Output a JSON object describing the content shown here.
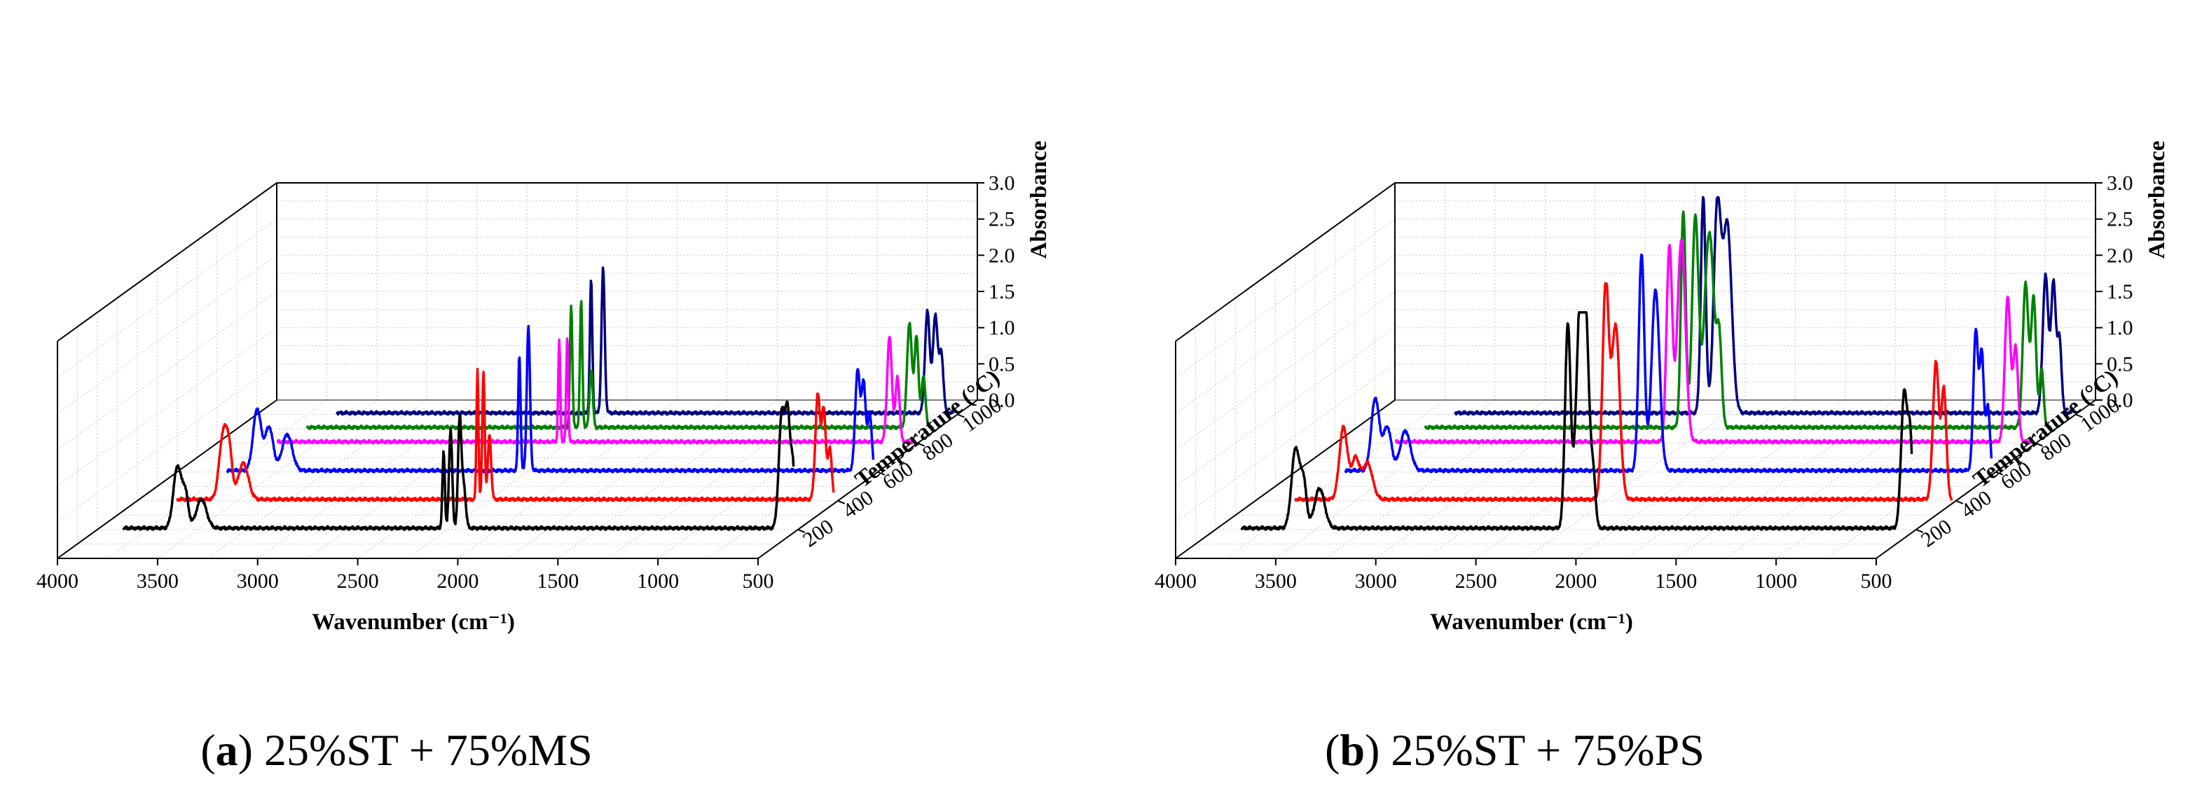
{
  "chart_data": [
    {
      "type": "line",
      "view": "3d-waterfall",
      "panel": "a",
      "caption": "25%ST + 75%MS",
      "xlabel": "Wavenumber (cm⁻¹)",
      "ylabel": "Temperature (°C)",
      "zlabel": "Absorbance",
      "xlim": [
        4000,
        500
      ],
      "x_ticks": [
        "4000",
        "3500",
        "3000",
        "2500",
        "2000",
        "1500",
        "1000",
        "500"
      ],
      "y_ticks": [
        "200",
        "400",
        "600",
        "800",
        "1000"
      ],
      "z_ticks": [
        "0.0",
        "0.5",
        "1.0",
        "1.5",
        "2.0",
        "2.5",
        "3.0"
      ],
      "zlim": [
        0,
        3
      ],
      "series": [
        {
          "name": "200",
          "color": "#000000",
          "temperature": 200,
          "x_start": 3870,
          "peaks": [
            [
              3600,
              0.85,
              20
            ],
            [
              3560,
              0.45,
              15
            ],
            [
              3480,
              0.4,
              25
            ],
            [
              2270,
              1.05,
              6
            ],
            [
              2235,
              1.35,
              8
            ],
            [
              2190,
              1.5,
              8
            ],
            [
              2170,
              0.6,
              10
            ],
            [
              580,
              1.6,
              15
            ],
            [
              550,
              1.45,
              12
            ],
            [
              525,
              0.8,
              10
            ]
          ]
        },
        {
          "name": "400",
          "color": "#ff0000",
          "temperature": 400,
          "x_start": 3800,
          "peaks": [
            [
              3570,
              0.9,
              20
            ],
            [
              3540,
              0.55,
              15
            ],
            [
              3470,
              0.5,
              25
            ],
            [
              2300,
              1.8,
              5
            ],
            [
              2270,
              1.75,
              6
            ],
            [
              2240,
              0.9,
              8
            ],
            [
              600,
              1.45,
              12
            ],
            [
              570,
              1.2,
              10
            ],
            [
              540,
              0.7,
              10
            ]
          ]
        },
        {
          "name": "600",
          "color": "#0000ff",
          "temperature": 600,
          "x_start": 3750,
          "peaks": [
            [
              3600,
              0.85,
              20
            ],
            [
              3540,
              0.6,
              20
            ],
            [
              3450,
              0.5,
              25
            ],
            [
              2290,
              1.6,
              6
            ],
            [
              2245,
              2.0,
              8
            ],
            [
              600,
              1.4,
              12
            ],
            [
              570,
              1.2,
              10
            ],
            [
              540,
              0.8,
              10
            ]
          ]
        },
        {
          "name": "800",
          "color": "#ff00ff",
          "temperature": 800,
          "x_start": 3700,
          "peaks": [
            [
              2290,
              1.4,
              5
            ],
            [
              2250,
              1.45,
              5
            ],
            [
              640,
              1.45,
              12
            ],
            [
              600,
              0.9,
              10
            ]
          ]
        },
        {
          "name": "900",
          "color": "#008000",
          "temperature": 900,
          "x_start": 3650,
          "peaks": [
            [
              2330,
              1.7,
              6
            ],
            [
              2280,
              1.75,
              6
            ],
            [
              2230,
              0.8,
              8
            ],
            [
              640,
              1.45,
              12
            ],
            [
              605,
              1.25,
              10
            ],
            [
              570,
              0.7,
              10
            ]
          ]
        },
        {
          "name": "1000",
          "color": "#000080",
          "temperature": 1000,
          "x_start": 3600,
          "peaks": [
            [
              2330,
              1.85,
              6
            ],
            [
              2270,
              2.0,
              8
            ],
            [
              650,
              1.4,
              12
            ],
            [
              610,
              1.35,
              12
            ],
            [
              580,
              0.8,
              10
            ]
          ]
        }
      ]
    },
    {
      "type": "line",
      "view": "3d-waterfall",
      "panel": "b",
      "caption": "25%ST + 75%PS",
      "xlabel": "Wavenumber (cm⁻¹)",
      "ylabel": "Temperature (°C)",
      "zlabel": "Absorbance",
      "xlim": [
        4000,
        500
      ],
      "x_ticks": [
        "4000",
        "3500",
        "3000",
        "2500",
        "2000",
        "1500",
        "1000",
        "500"
      ],
      "y_ticks": [
        "200",
        "400",
        "600",
        "800",
        "1000"
      ],
      "z_ticks": [
        "0.0",
        "0.5",
        "1.0",
        "1.5",
        "2.0",
        "2.5",
        "3.0"
      ],
      "zlim": [
        0,
        3
      ],
      "series": [
        {
          "name": "200",
          "color": "#000000",
          "temperature": 200,
          "x_start": 3870,
          "peaks": [
            [
              3600,
              1.1,
              20
            ],
            [
              3560,
              0.6,
              15
            ],
            [
              3480,
              0.55,
              25
            ],
            [
              2240,
              2.8,
              14
            ],
            [
              2180,
              2.6,
              20
            ],
            [
              2150,
              2.4,
              20
            ],
            [
              2110,
              0.5,
              10
            ],
            [
              560,
              1.85,
              15
            ],
            [
              530,
              1.2,
              12
            ]
          ]
        },
        {
          "name": "400",
          "color": "#ff0000",
          "temperature": 400,
          "x_start": 3800,
          "peaks": [
            [
              3560,
              1.0,
              20
            ],
            [
              3500,
              0.55,
              20
            ],
            [
              3440,
              0.5,
              25
            ],
            [
              2250,
              2.95,
              16
            ],
            [
              2200,
              2.4,
              20
            ],
            [
              600,
              1.9,
              15
            ],
            [
              560,
              1.5,
              12
            ]
          ]
        },
        {
          "name": "600",
          "color": "#0000ff",
          "temperature": 600,
          "x_start": 3750,
          "peaks": [
            [
              3600,
              1.0,
              20
            ],
            [
              3540,
              0.6,
              20
            ],
            [
              3450,
              0.55,
              25
            ],
            [
              2270,
              3.0,
              14
            ],
            [
              2200,
              2.5,
              20
            ],
            [
              600,
              1.95,
              12
            ],
            [
              570,
              1.6,
              10
            ],
            [
              540,
              0.9,
              10
            ]
          ]
        },
        {
          "name": "800",
          "color": "#ff00ff",
          "temperature": 800,
          "x_start": 3700,
          "peaks": [
            [
              2330,
              2.7,
              14
            ],
            [
              2270,
              2.8,
              20
            ],
            [
              640,
              2.0,
              14
            ],
            [
              600,
              1.3,
              12
            ]
          ]
        },
        {
          "name": "900",
          "color": "#008000",
          "temperature": 900,
          "x_start": 3650,
          "peaks": [
            [
              2360,
              3.0,
              12
            ],
            [
              2300,
              2.9,
              16
            ],
            [
              2230,
              2.7,
              24
            ],
            [
              2180,
              1.1,
              12
            ],
            [
              650,
              2.0,
              14
            ],
            [
              610,
              1.8,
              12
            ],
            [
              570,
              0.8,
              10
            ]
          ]
        },
        {
          "name": "1000",
          "color": "#000080",
          "temperature": 1000,
          "x_start": 3600,
          "peaks": [
            [
              2360,
              3.0,
              12
            ],
            [
              2290,
              2.8,
              18
            ],
            [
              2240,
              2.6,
              22
            ],
            [
              650,
              1.9,
              14
            ],
            [
              610,
              1.8,
              12
            ],
            [
              580,
              1.0,
              10
            ]
          ]
        }
      ]
    }
  ]
}
